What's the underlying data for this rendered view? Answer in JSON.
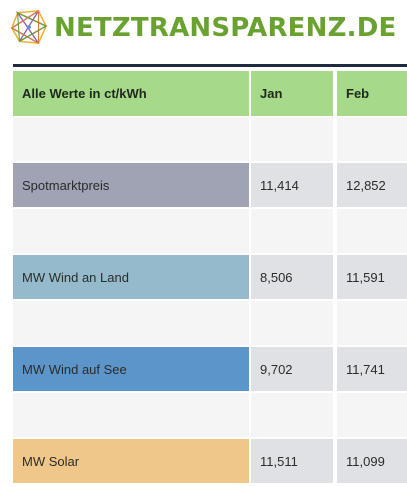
{
  "site": {
    "brand": "NETZTRANSPARENZ.DE",
    "logo_icon": "netztransparenz-polygon-logo-icon",
    "brand_color": "#6aa232"
  },
  "table": {
    "headers": [
      "Alle Werte in ct/kWh",
      "Jan",
      "Feb"
    ],
    "header_color": "#a6d98a",
    "rows": [
      {
        "label": "Spotmarktpreis",
        "jan": "11,414",
        "feb": "12,852",
        "color": "#9fa3b4"
      },
      {
        "label": "MW Wind an Land",
        "jan": "8,506",
        "feb": "11,591",
        "color": "#95bacb"
      },
      {
        "label": "MW Wind auf See",
        "jan": "9,702",
        "feb": "11,741",
        "color": "#5b95c9"
      },
      {
        "label": "MW Solar",
        "jan": "11,511",
        "feb": "11,099",
        "color": "#efc78a"
      }
    ]
  }
}
